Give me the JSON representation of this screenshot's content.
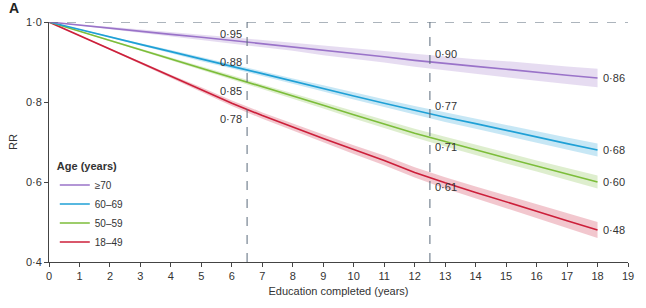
{
  "chart_data": {
    "type": "line",
    "panel_label": "A",
    "x_label": "Education completed (years)",
    "y_label": "RR",
    "legend_title": "Age (years)",
    "legend": "lower left",
    "grid": false,
    "xlim": [
      0,
      19
    ],
    "xticks": [
      0,
      1,
      2,
      3,
      4,
      5,
      6,
      7,
      8,
      9,
      10,
      11,
      12,
      13,
      14,
      15,
      16,
      17,
      18,
      19
    ],
    "ylim": [
      0.4,
      1.0
    ],
    "yticks": [
      {
        "value": 0.4,
        "label": "0·4"
      },
      {
        "value": 0.6,
        "label": "0·6"
      },
      {
        "value": 0.8,
        "label": "0·8"
      },
      {
        "value": 1.0,
        "label": "1·0"
      }
    ],
    "vlines": [
      6.5,
      12.5
    ],
    "hlines": [
      1.0
    ],
    "x": [
      0,
      1,
      2,
      3,
      4,
      5,
      6,
      7,
      8,
      9,
      10,
      11,
      12,
      13,
      14,
      15,
      16,
      17,
      18
    ],
    "series": [
      {
        "name": "18–49",
        "color": "#cc1f3a",
        "values": [
          1.0,
          0.966,
          0.932,
          0.897,
          0.864,
          0.831,
          0.797,
          0.766,
          0.737,
          0.709,
          0.681,
          0.654,
          0.624,
          0.598,
          0.574,
          0.551,
          0.527,
          0.503,
          0.48
        ],
        "lower": [
          1.0,
          0.965,
          0.93,
          0.894,
          0.86,
          0.825,
          0.79,
          0.758,
          0.728,
          0.699,
          0.67,
          0.642,
          0.611,
          0.584,
          0.559,
          0.535,
          0.509,
          0.484,
          0.46
        ],
        "upper": [
          1.0,
          0.967,
          0.934,
          0.9,
          0.868,
          0.837,
          0.804,
          0.774,
          0.746,
          0.719,
          0.692,
          0.666,
          0.637,
          0.612,
          0.589,
          0.567,
          0.545,
          0.522,
          0.5
        ],
        "labels": [
          {
            "x": 6.5,
            "y": 0.78,
            "text": "0·78"
          },
          {
            "x": 12.5,
            "y": 0.61,
            "text": "0·61"
          },
          {
            "x": 18,
            "y": 0.48,
            "text": "0·48"
          }
        ]
      },
      {
        "name": "50–59",
        "color": "#7cbd3a",
        "values": [
          1.0,
          0.977,
          0.954,
          0.931,
          0.908,
          0.885,
          0.862,
          0.838,
          0.815,
          0.792,
          0.768,
          0.745,
          0.722,
          0.701,
          0.68,
          0.66,
          0.64,
          0.62,
          0.6
        ],
        "lower": [
          1.0,
          0.976,
          0.952,
          0.928,
          0.904,
          0.88,
          0.857,
          0.832,
          0.808,
          0.784,
          0.759,
          0.735,
          0.711,
          0.689,
          0.667,
          0.646,
          0.626,
          0.605,
          0.584
        ],
        "upper": [
          1.0,
          0.978,
          0.956,
          0.934,
          0.912,
          0.89,
          0.867,
          0.844,
          0.822,
          0.8,
          0.777,
          0.755,
          0.733,
          0.713,
          0.693,
          0.674,
          0.654,
          0.635,
          0.616
        ],
        "labels": [
          {
            "x": 6.5,
            "y": 0.85,
            "text": "0·85"
          },
          {
            "x": 12.5,
            "y": 0.71,
            "text": "0·71"
          },
          {
            "x": 18,
            "y": 0.6,
            "text": "0·60"
          }
        ]
      },
      {
        "name": "60–69",
        "color": "#1fa0d6",
        "values": [
          1.0,
          0.981,
          0.963,
          0.944,
          0.926,
          0.907,
          0.889,
          0.871,
          0.852,
          0.834,
          0.815,
          0.797,
          0.779,
          0.762,
          0.746,
          0.729,
          0.713,
          0.696,
          0.68
        ],
        "lower": [
          1.0,
          0.98,
          0.961,
          0.941,
          0.922,
          0.902,
          0.884,
          0.865,
          0.845,
          0.826,
          0.806,
          0.787,
          0.768,
          0.75,
          0.733,
          0.716,
          0.699,
          0.681,
          0.664
        ],
        "upper": [
          1.0,
          0.982,
          0.965,
          0.947,
          0.93,
          0.912,
          0.894,
          0.877,
          0.859,
          0.842,
          0.824,
          0.807,
          0.79,
          0.774,
          0.759,
          0.742,
          0.727,
          0.711,
          0.696
        ],
        "labels": [
          {
            "x": 6.5,
            "y": 0.88,
            "text": "0·88"
          },
          {
            "x": 12.5,
            "y": 0.77,
            "text": "0·77"
          },
          {
            "x": 18,
            "y": 0.68,
            "text": "0·68"
          }
        ]
      },
      {
        "name": "≥70",
        "color": "#9a73c9",
        "values": [
          1.0,
          0.992,
          0.985,
          0.977,
          0.969,
          0.962,
          0.954,
          0.946,
          0.938,
          0.929,
          0.921,
          0.913,
          0.904,
          0.896,
          0.889,
          0.882,
          0.874,
          0.867,
          0.86
        ],
        "lower": [
          1.0,
          0.991,
          0.982,
          0.973,
          0.964,
          0.956,
          0.946,
          0.937,
          0.928,
          0.917,
          0.908,
          0.899,
          0.888,
          0.879,
          0.871,
          0.862,
          0.853,
          0.845,
          0.837
        ],
        "upper": [
          1.0,
          0.993,
          0.988,
          0.981,
          0.974,
          0.968,
          0.962,
          0.955,
          0.948,
          0.941,
          0.934,
          0.927,
          0.92,
          0.913,
          0.907,
          0.902,
          0.895,
          0.889,
          0.883
        ],
        "labels": [
          {
            "x": 6.5,
            "y": 0.95,
            "text": "0·95"
          },
          {
            "x": 12.5,
            "y": 0.9,
            "text": "0·90"
          },
          {
            "x": 18,
            "y": 0.86,
            "text": "0·86"
          }
        ]
      }
    ]
  }
}
